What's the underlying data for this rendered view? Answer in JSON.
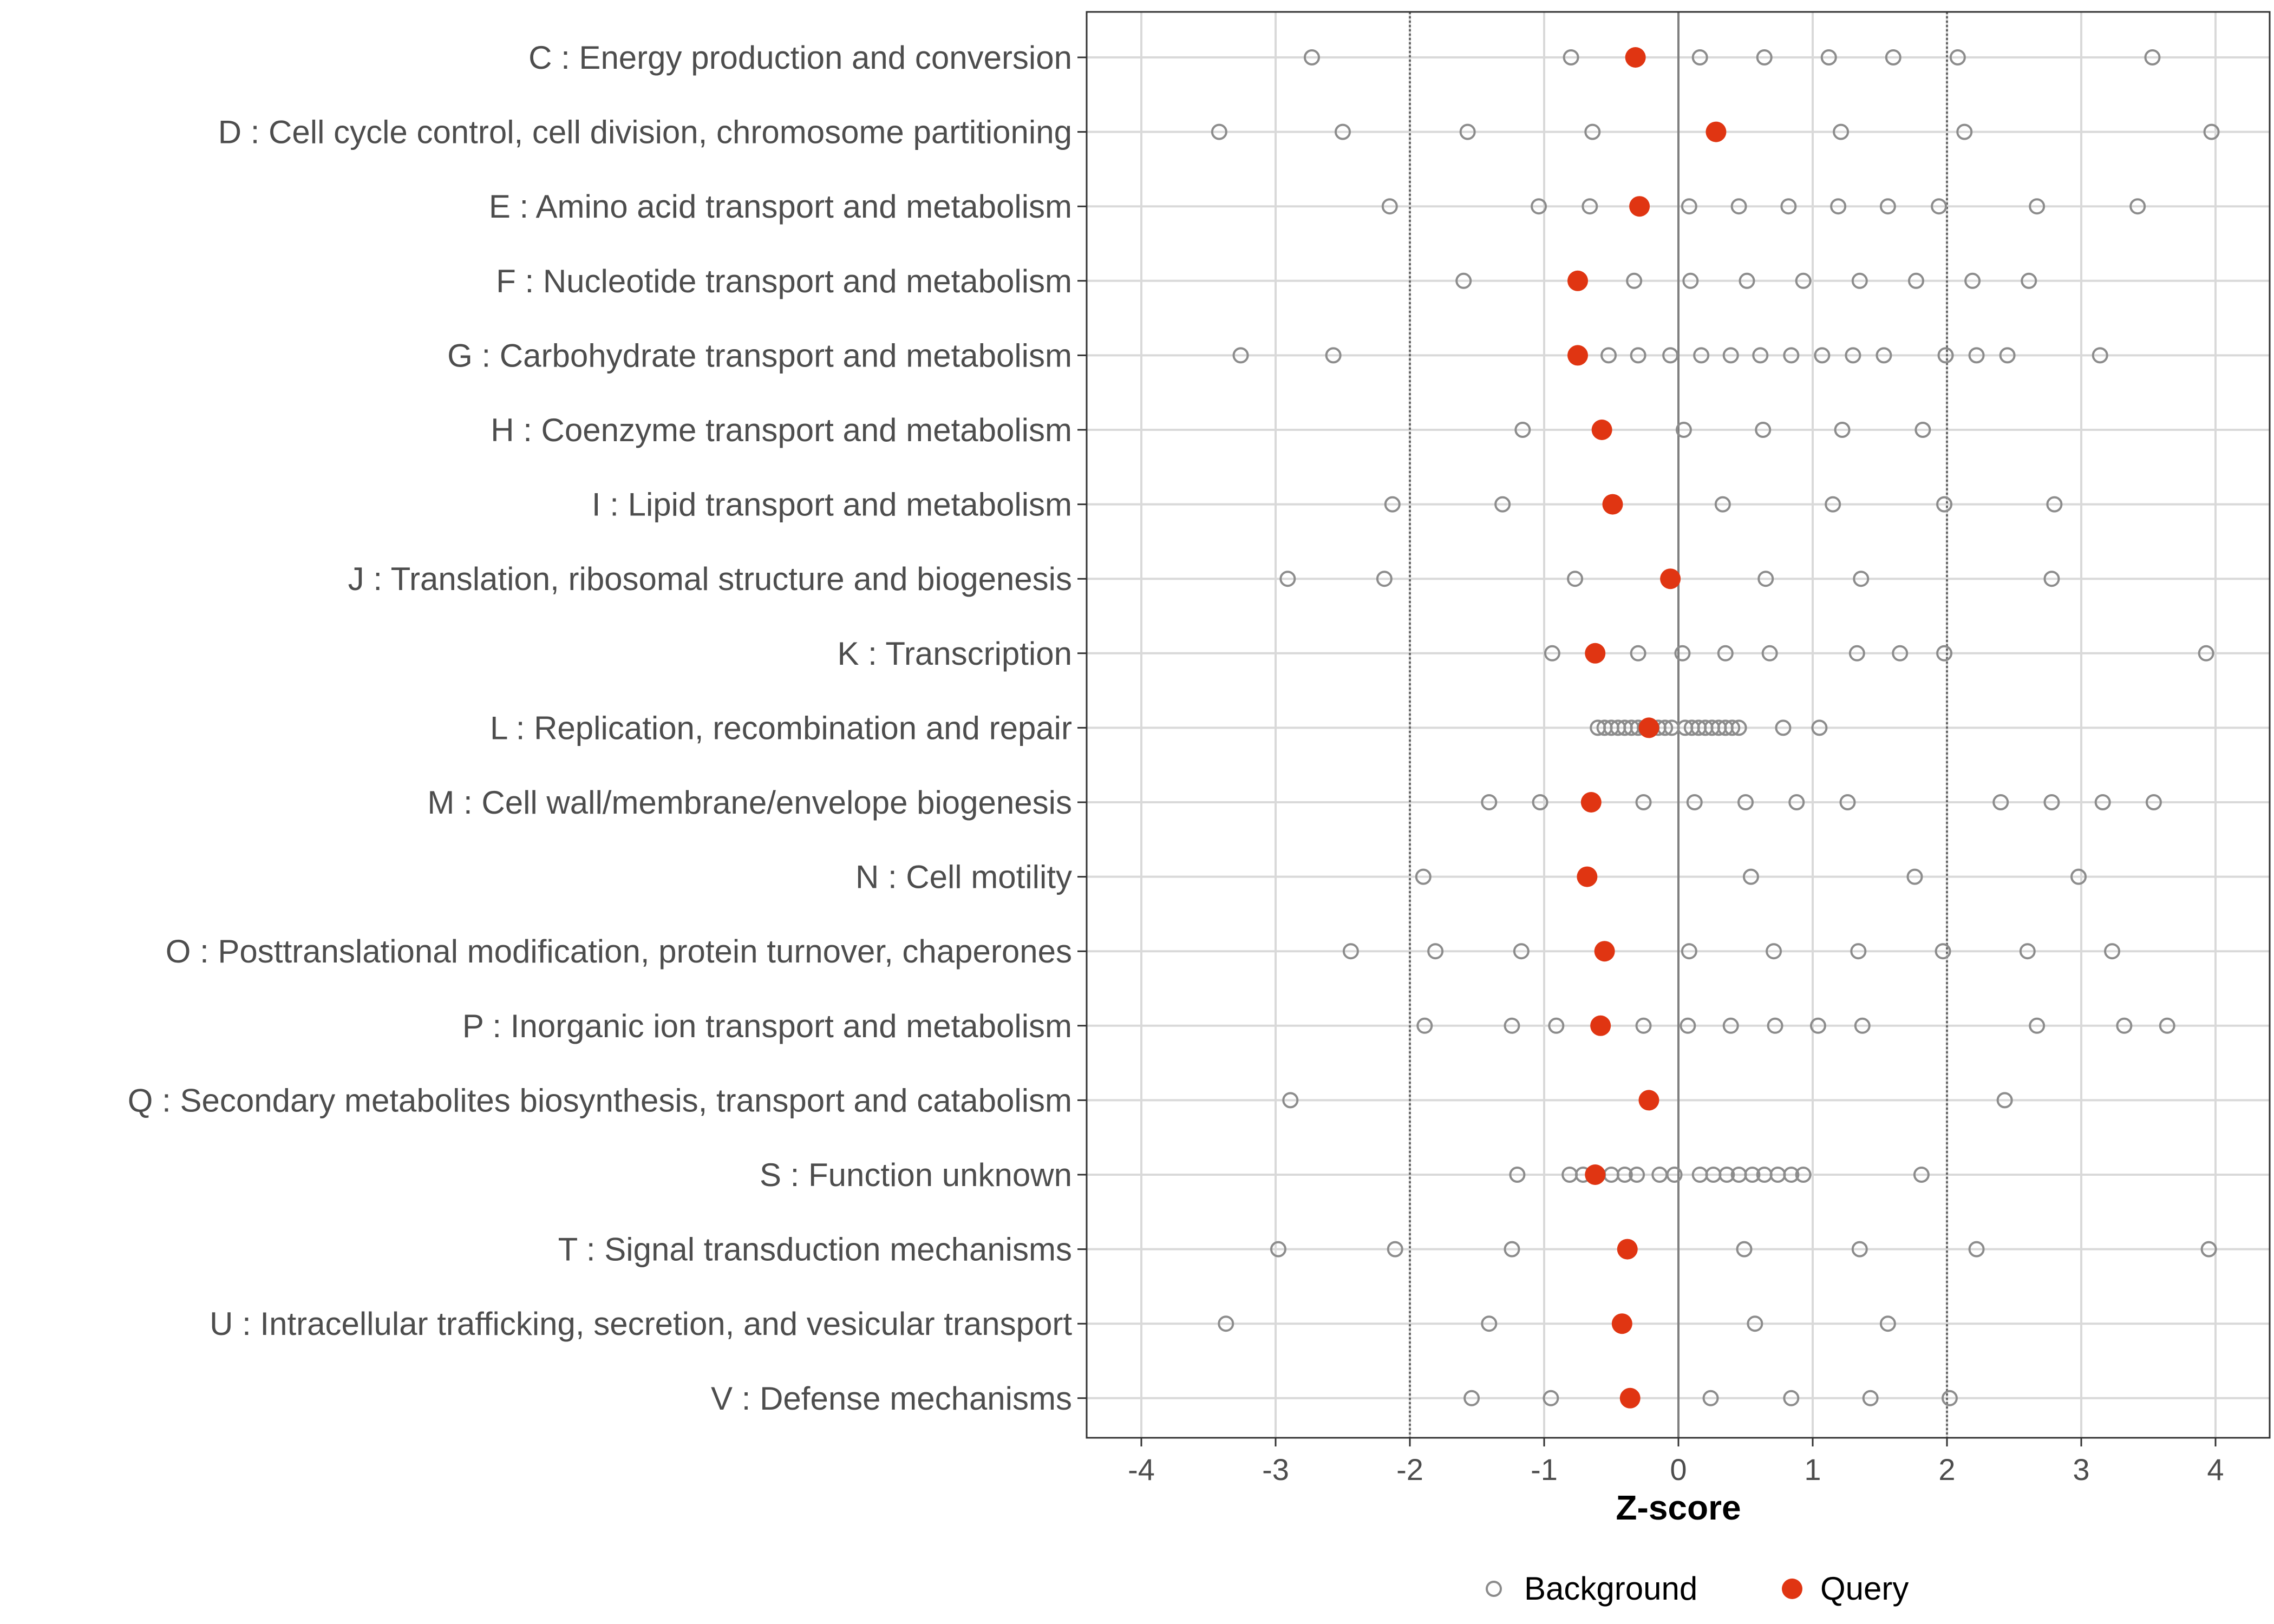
{
  "colors": {
    "background_point": "#8c8c8c",
    "query_point": "#e03512",
    "grid": "#d9d9d9",
    "zero_line": "#7f7f7f",
    "threshold_line": "#666666",
    "text": "#4d4d4d"
  },
  "chart_data": {
    "type": "scatter",
    "title": "",
    "xlabel": "Z-score",
    "ylabel": "",
    "xlim": [
      -4.4,
      4.4
    ],
    "xticks": [
      -4,
      -3,
      -2,
      -1,
      0,
      1,
      2,
      3,
      4
    ],
    "xtick_labels": [
      "-4",
      "-3",
      "-2",
      "-1",
      "0",
      "1",
      "2",
      "3",
      "4"
    ],
    "reference_lines": {
      "zero": 0,
      "thresholds": [
        -2,
        2
      ]
    },
    "grid": true,
    "legend": {
      "position": "bottom",
      "entries": [
        {
          "name": "Background",
          "marker": "open-circle"
        },
        {
          "name": "Query",
          "marker": "filled-circle"
        }
      ]
    },
    "categories": [
      {
        "label": "C : Energy production and conversion",
        "query": -0.32,
        "background": [
          -2.73,
          -0.8,
          0.16,
          0.64,
          1.12,
          1.6,
          2.08,
          3.53
        ]
      },
      {
        "label": "D : Cell cycle control, cell division, chromosome partitioning",
        "query": 0.28,
        "background": [
          -3.42,
          -2.5,
          -1.57,
          -0.64,
          1.21,
          2.13,
          3.97
        ]
      },
      {
        "label": "E : Amino acid transport and metabolism",
        "query": -0.29,
        "background": [
          -2.15,
          -1.04,
          -0.66,
          0.08,
          0.45,
          0.82,
          1.19,
          1.56,
          1.94,
          2.67,
          3.42
        ]
      },
      {
        "label": "F : Nucleotide transport and metabolism",
        "query": -0.75,
        "background": [
          -1.6,
          -0.33,
          0.09,
          0.51,
          0.93,
          1.35,
          1.77,
          2.19,
          2.61
        ]
      },
      {
        "label": "G : Carbohydrate transport and metabolism",
        "query": -0.75,
        "background": [
          -3.26,
          -2.57,
          -0.52,
          -0.3,
          -0.06,
          0.17,
          0.39,
          0.61,
          0.84,
          1.07,
          1.3,
          1.53,
          1.99,
          2.22,
          2.45,
          3.14
        ]
      },
      {
        "label": "H : Coenzyme transport and metabolism",
        "query": -0.57,
        "background": [
          -1.16,
          0.04,
          0.63,
          1.22,
          1.82
        ]
      },
      {
        "label": "I : Lipid transport and metabolism",
        "query": -0.49,
        "background": [
          -2.13,
          -1.31,
          0.33,
          1.15,
          1.98,
          2.8
        ]
      },
      {
        "label": "J : Translation, ribosomal structure and biogenesis",
        "query": -0.06,
        "background": [
          -2.91,
          -2.19,
          -0.77,
          0.65,
          1.36,
          2.78
        ]
      },
      {
        "label": "K : Transcription",
        "query": -0.62,
        "background": [
          -0.94,
          -0.3,
          0.03,
          0.35,
          0.68,
          1.33,
          1.65,
          1.98,
          3.93
        ]
      },
      {
        "label": "L : Replication, recombination and repair",
        "query": -0.22,
        "background": [
          -0.6,
          -0.55,
          -0.5,
          -0.45,
          -0.4,
          -0.35,
          -0.3,
          -0.25,
          -0.2,
          -0.15,
          -0.1,
          -0.05,
          0.05,
          0.1,
          0.15,
          0.2,
          0.25,
          0.3,
          0.35,
          0.4,
          0.45,
          0.78,
          1.05
        ]
      },
      {
        "label": "M : Cell wall/membrane/envelope biogenesis",
        "query": -0.65,
        "background": [
          -1.41,
          -1.03,
          -0.26,
          0.12,
          0.5,
          0.88,
          1.26,
          2.4,
          2.78,
          3.16,
          3.54
        ]
      },
      {
        "label": "N : Cell motility",
        "query": -0.68,
        "background": [
          -1.9,
          0.54,
          1.76,
          2.98
        ]
      },
      {
        "label": "O : Posttranslational modification, protein turnover, chaperones",
        "query": -0.55,
        "background": [
          -2.44,
          -1.81,
          -1.17,
          0.08,
          0.71,
          1.34,
          1.97,
          2.6,
          3.23
        ]
      },
      {
        "label": "P : Inorganic ion transport and metabolism",
        "query": -0.58,
        "background": [
          -1.89,
          -1.24,
          -0.91,
          -0.26,
          0.07,
          0.39,
          0.72,
          1.04,
          1.37,
          2.67,
          3.32,
          3.64
        ]
      },
      {
        "label": "Q : Secondary metabolites biosynthesis, transport and catabolism",
        "query": -0.22,
        "background": [
          -2.89,
          2.43
        ]
      },
      {
        "label": "S : Function unknown",
        "query": -0.62,
        "background": [
          -1.2,
          -0.81,
          -0.71,
          -0.6,
          -0.5,
          -0.4,
          -0.31,
          -0.14,
          -0.03,
          0.16,
          0.26,
          0.36,
          0.45,
          0.55,
          0.64,
          0.74,
          0.84,
          0.93,
          1.81
        ]
      },
      {
        "label": "T : Signal transduction mechanisms",
        "query": -0.38,
        "background": [
          -2.98,
          -2.11,
          -1.24,
          0.49,
          1.35,
          2.22,
          3.95
        ]
      },
      {
        "label": "U : Intracellular trafficking, secretion, and vesicular transport",
        "query": -0.42,
        "background": [
          -3.37,
          -1.41,
          0.57,
          1.56
        ]
      },
      {
        "label": "V : Defense mechanisms",
        "query": -0.36,
        "background": [
          -1.54,
          -0.95,
          0.24,
          0.84,
          1.43,
          2.02
        ]
      }
    ]
  }
}
